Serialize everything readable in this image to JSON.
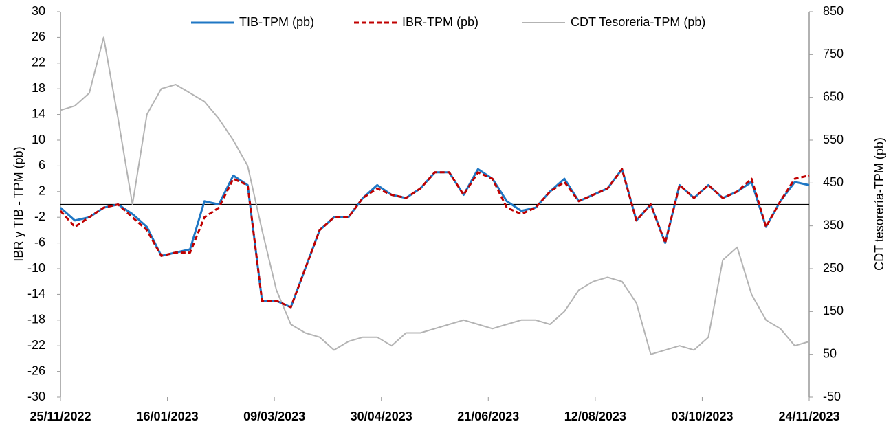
{
  "chart_data": {
    "type": "line",
    "y_label": "IBR y TIB - TPM (pb)",
    "y2_label": "CDT tesorería-TPM (pb)",
    "x": [
      "25/11/2022",
      "02/12/2022",
      "09/12/2022",
      "16/12/2022",
      "23/12/2022",
      "30/12/2022",
      "06/01/2023",
      "13/01/2023",
      "20/01/2023",
      "27/01/2023",
      "03/02/2023",
      "10/02/2023",
      "17/02/2023",
      "24/02/2023",
      "03/03/2023",
      "10/03/2023",
      "17/03/2023",
      "24/03/2023",
      "31/03/2023",
      "07/04/2023",
      "14/04/2023",
      "21/04/2023",
      "28/04/2023",
      "05/05/2023",
      "12/05/2023",
      "19/05/2023",
      "26/05/2023",
      "02/06/2023",
      "09/06/2023",
      "16/06/2023",
      "23/06/2023",
      "30/06/2023",
      "07/07/2023",
      "14/07/2023",
      "21/07/2023",
      "28/07/2023",
      "04/08/2023",
      "11/08/2023",
      "18/08/2023",
      "25/08/2023",
      "01/09/2023",
      "08/09/2023",
      "15/09/2023",
      "22/09/2023",
      "29/09/2023",
      "06/10/2023",
      "13/10/2023",
      "20/10/2023",
      "27/10/2023",
      "03/11/2023",
      "10/11/2023",
      "17/11/2023",
      "24/11/2023"
    ],
    "series": [
      {
        "name": "TIB-TPM (pb)",
        "color": "#1f77c4",
        "dash": false,
        "axis": "y",
        "values": [
          -0.5,
          -2.5,
          -2,
          -0.5,
          0,
          -1.5,
          -3.5,
          -8,
          -7.5,
          -7,
          0.5,
          0,
          4.5,
          3,
          -15,
          -15,
          -16,
          -10,
          -4,
          -2,
          -2,
          1,
          3,
          1.5,
          1,
          2.5,
          5,
          5,
          1.5,
          5.5,
          4,
          0.5,
          -1,
          -0.5,
          2,
          4,
          0.5,
          1.5,
          2.5,
          5.5,
          -2.5,
          0,
          -6,
          3,
          1,
          3,
          1,
          2,
          3.5,
          -3.5,
          0.5,
          3.5,
          3
        ]
      },
      {
        "name": "IBR-TPM (pb)",
        "color": "#c00000",
        "dash": true,
        "axis": "y",
        "values": [
          -1,
          -3.5,
          -2,
          -0.5,
          0,
          -2,
          -4,
          -8,
          -7.5,
          -7.5,
          -2,
          -0.5,
          4,
          3,
          -15,
          -15,
          -16,
          -10,
          -4,
          -2,
          -2,
          1,
          2.5,
          1.5,
          1,
          2.5,
          5,
          5,
          1.5,
          5,
          4,
          -0.5,
          -1.5,
          -0.5,
          2,
          3.5,
          0.5,
          1.5,
          2.5,
          5.5,
          -2.5,
          0,
          -6,
          3,
          1,
          3,
          1,
          2,
          4,
          -3.5,
          0.5,
          4,
          4.5
        ]
      },
      {
        "name": "CDT Tesoreria-TPM (pb)",
        "color": "#b3b3b3",
        "dash": false,
        "axis": "y2",
        "values": [
          620,
          630,
          660,
          790,
          600,
          400,
          610,
          670,
          680,
          660,
          640,
          600,
          550,
          490,
          340,
          200,
          120,
          100,
          90,
          60,
          80,
          90,
          90,
          70,
          100,
          100,
          110,
          120,
          130,
          120,
          110,
          120,
          130,
          130,
          120,
          150,
          200,
          220,
          230,
          220,
          170,
          50,
          60,
          70,
          60,
          90,
          270,
          300,
          190,
          130,
          110,
          70,
          80
        ]
      }
    ],
    "xlim": [
      "25/11/2022",
      "24/11/2023"
    ],
    "xticks": [
      "25/11/2022",
      "16/01/2023",
      "09/03/2023",
      "30/04/2023",
      "21/06/2023",
      "12/08/2023",
      "03/10/2023",
      "24/11/2023"
    ],
    "ylim": [
      -30,
      30
    ],
    "yticks": [
      -30,
      -26,
      -22,
      -18,
      -14,
      -10,
      -6,
      -2,
      2,
      6,
      10,
      14,
      18,
      22,
      26,
      30
    ],
    "y2lim": [
      -50,
      850
    ],
    "y2ticks": [
      -50,
      50,
      150,
      250,
      350,
      450,
      550,
      650,
      750,
      850
    ],
    "legend": "top"
  }
}
